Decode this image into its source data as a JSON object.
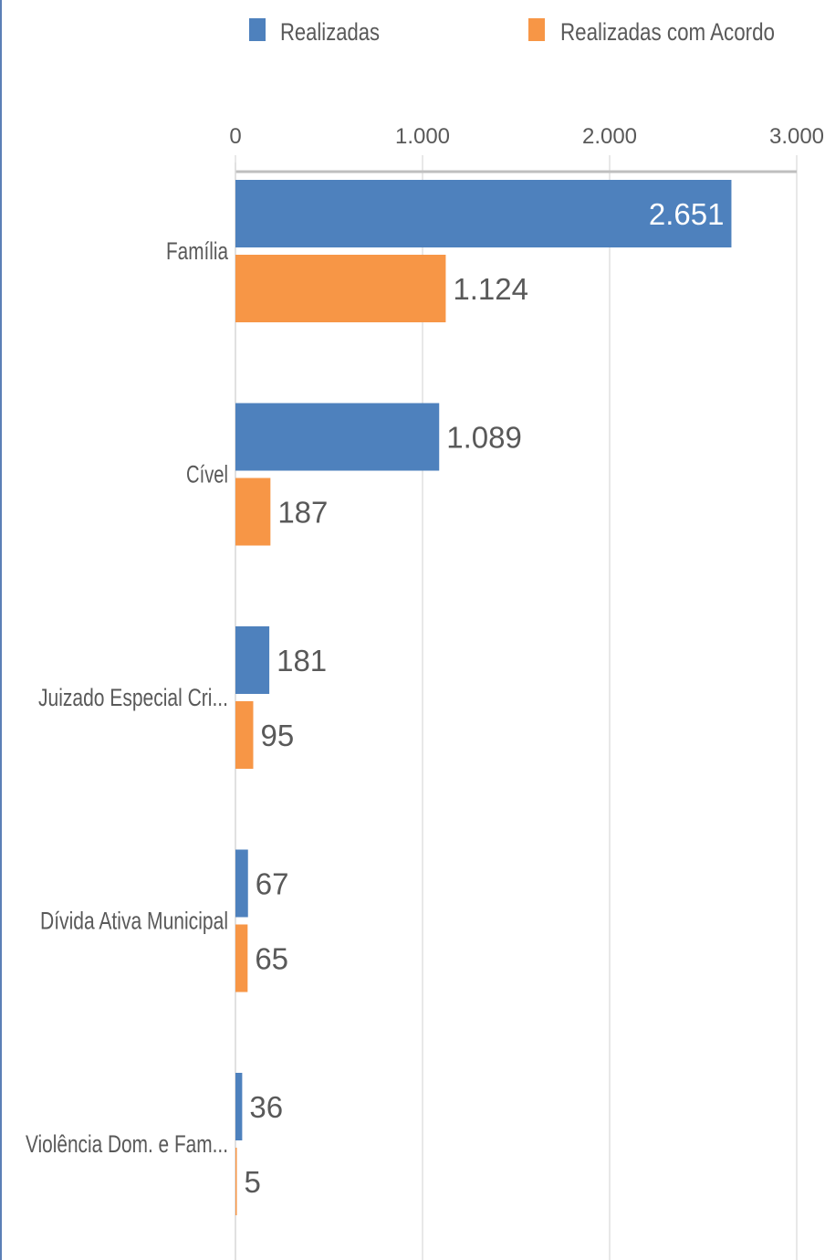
{
  "colors": {
    "realizadas": "#4e81bd",
    "com_acordo": "#f79646",
    "grid": "#d9d9d9",
    "axis": "#bfbfbf",
    "text": "#595959",
    "inside_label": "#ffffff",
    "frame": "#5b7fb6"
  },
  "chart_data": {
    "type": "bar",
    "orientation": "horizontal",
    "categories": [
      "Família",
      "Cível",
      "Juizado Especial Cri...",
      "Dívida Ativa Municipal",
      "Violência Dom. e Fam..."
    ],
    "series": [
      {
        "name": "Realizadas",
        "values": [
          2651,
          1089,
          181,
          67,
          36
        ],
        "labels": [
          "2.651",
          "1.089",
          "181",
          "67",
          "36"
        ]
      },
      {
        "name": "Realizadas com Acordo",
        "values": [
          1124,
          187,
          95,
          65,
          5
        ],
        "labels": [
          "1.124",
          "187",
          "95",
          "65",
          "5"
        ]
      }
    ],
    "xlim": [
      0,
      3000
    ],
    "ticks": [
      0,
      1000,
      2000,
      3000
    ],
    "tick_labels": [
      "0",
      "1.000",
      "2.000",
      "3.000"
    ],
    "grid": true,
    "legend_position": "top",
    "title": "",
    "xlabel": "",
    "ylabel": ""
  }
}
